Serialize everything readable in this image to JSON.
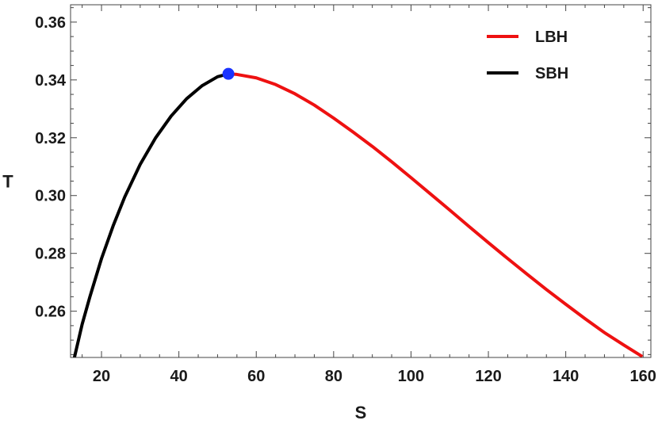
{
  "chart_data": {
    "type": "line",
    "xlabel": "S",
    "ylabel": "T",
    "xlim": [
      12,
      162
    ],
    "ylim": [
      0.244,
      0.366
    ],
    "x_ticks": [
      20,
      40,
      60,
      80,
      100,
      120,
      140,
      160
    ],
    "x_tick_labels": [
      "20",
      "40",
      "60",
      "80",
      "100",
      "120",
      "140",
      "160"
    ],
    "y_ticks": [
      0.26,
      0.28,
      0.3,
      0.32,
      0.34,
      0.36
    ],
    "y_tick_labels": [
      "0.26",
      "0.28",
      "0.30",
      "0.32",
      "0.34",
      "0.36"
    ],
    "grid": false,
    "legend_position": "top-right",
    "series": [
      {
        "name": "LBH",
        "color": "#ee1111",
        "points": [
          [
            52.8,
            0.3421
          ],
          [
            55,
            0.3419
          ],
          [
            60,
            0.3407
          ],
          [
            65,
            0.3384
          ],
          [
            70,
            0.3352
          ],
          [
            75,
            0.3313
          ],
          [
            80,
            0.3268
          ],
          [
            85,
            0.322
          ],
          [
            90,
            0.317
          ],
          [
            95,
            0.3117
          ],
          [
            100,
            0.3062
          ],
          [
            105,
            0.3006
          ],
          [
            110,
            0.295
          ],
          [
            115,
            0.2893
          ],
          [
            120,
            0.2837
          ],
          [
            125,
            0.2782
          ],
          [
            130,
            0.2728
          ],
          [
            135,
            0.2675
          ],
          [
            140,
            0.2624
          ],
          [
            145,
            0.2574
          ],
          [
            150,
            0.2526
          ],
          [
            155,
            0.2483
          ],
          [
            159.8,
            0.2443
          ]
        ]
      },
      {
        "name": "SBH",
        "color": "#000000",
        "points": [
          [
            13,
            0.244
          ],
          [
            15,
            0.2555
          ],
          [
            17,
            0.265
          ],
          [
            20,
            0.2782
          ],
          [
            23,
            0.2895
          ],
          [
            26,
            0.2995
          ],
          [
            30,
            0.3108
          ],
          [
            34,
            0.32
          ],
          [
            38,
            0.3275
          ],
          [
            42,
            0.3335
          ],
          [
            46,
            0.338
          ],
          [
            50,
            0.3411
          ],
          [
            52.8,
            0.3421
          ]
        ]
      }
    ],
    "marker": {
      "x": 52.8,
      "y": 0.3421,
      "color": "#1a33ff"
    }
  }
}
